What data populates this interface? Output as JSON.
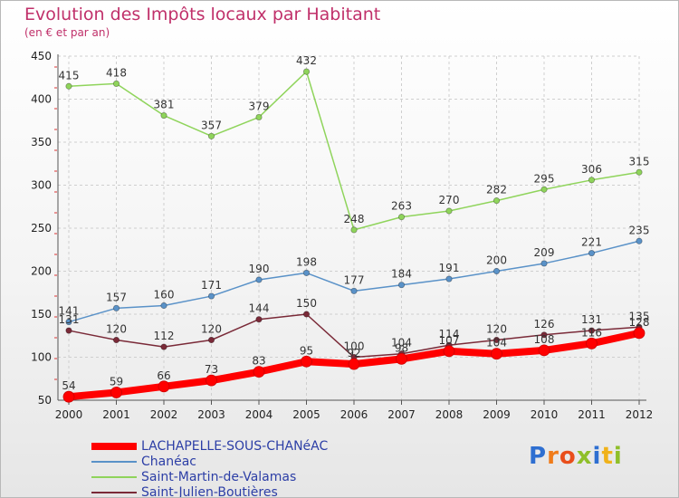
{
  "header": {
    "title": "Evolution des Impôts locaux par Habitant",
    "subtitle": "(en € et par an)"
  },
  "branding": {
    "logo_letters": [
      {
        "ch": "P",
        "color": "#2e6fd1"
      },
      {
        "ch": "r",
        "color": "#f07c1a"
      },
      {
        "ch": "o",
        "color": "#e94e1b"
      },
      {
        "ch": "x",
        "color": "#8fbf2a"
      },
      {
        "ch": "i",
        "color": "#2e6fd1"
      },
      {
        "ch": "t",
        "color": "#f0b21a"
      },
      {
        "ch": "i",
        "color": "#8fbf2a"
      }
    ]
  },
  "chart_data": {
    "type": "line",
    "title": "Evolution des Impôts locaux par Habitant",
    "subtitle": "(en € et par an)",
    "x": [
      "2000",
      "2001",
      "2002",
      "2003",
      "2004",
      "2005",
      "2006",
      "2007",
      "2008",
      "2009",
      "2010",
      "2011",
      "2012"
    ],
    "ylim": [
      50,
      450
    ],
    "yticks": [
      50,
      100,
      150,
      200,
      250,
      300,
      350,
      400,
      450
    ],
    "grid": true,
    "legend_position": "bottom-left",
    "series": [
      {
        "name": "LACHAPELLE-SOUS-CHANéAC",
        "color": "#ff0000",
        "values": [
          54,
          59,
          66,
          73,
          83,
          95,
          92,
          98,
          107,
          104,
          108,
          116,
          128
        ]
      },
      {
        "name": "Chanéac",
        "color": "#5a92c8",
        "values": [
          141,
          157,
          160,
          171,
          190,
          198,
          177,
          184,
          191,
          200,
          209,
          221,
          235
        ]
      },
      {
        "name": "Saint-Martin-de-Valamas",
        "color": "#8fd45b",
        "values": [
          415,
          418,
          381,
          357,
          379,
          432,
          248,
          263,
          270,
          282,
          295,
          306,
          315
        ]
      },
      {
        "name": "Saint-Julien-Boutières",
        "color": "#7a2a38",
        "values": [
          131,
          120,
          112,
          120,
          144,
          150,
          100,
          104,
          114,
          120,
          126,
          131,
          135
        ]
      }
    ]
  }
}
